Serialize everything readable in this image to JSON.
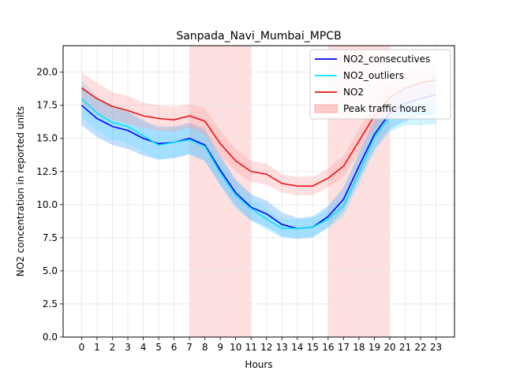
{
  "chart_data": {
    "type": "line",
    "title": "Sanpada_Navi_Mumbai_MPCB",
    "xlabel": "Hours",
    "ylabel": "NO2 concentration in reported units",
    "xlim": [
      -1.2,
      24.2
    ],
    "ylim": [
      0,
      22
    ],
    "x": [
      0,
      1,
      2,
      3,
      4,
      5,
      6,
      7,
      8,
      9,
      10,
      11,
      12,
      13,
      14,
      15,
      16,
      17,
      18,
      19,
      20,
      21,
      22,
      23
    ],
    "yticks": [
      0.0,
      2.5,
      5.0,
      7.5,
      10.0,
      12.5,
      15.0,
      17.5,
      20.0
    ],
    "ytick_labels": [
      "0.0",
      "2.5",
      "5.0",
      "7.5",
      "10.0",
      "12.5",
      "15.0",
      "17.5",
      "20.0"
    ],
    "xtick_labels": [
      "0",
      "1",
      "2",
      "3",
      "4",
      "5",
      "6",
      "7",
      "8",
      "9",
      "10",
      "11",
      "12",
      "13",
      "14",
      "15",
      "16",
      "17",
      "18",
      "19",
      "20",
      "21",
      "22",
      "23"
    ],
    "grid": true,
    "legend": "top-right",
    "peak_traffic_hours": [
      [
        7,
        11
      ],
      [
        16,
        20
      ]
    ],
    "series": [
      {
        "name": "NO2_consecutives",
        "color": "#0000ff",
        "band_color": "#3399ff",
        "values": [
          17.5,
          16.5,
          15.9,
          15.6,
          15.0,
          14.6,
          14.7,
          15.0,
          14.5,
          12.6,
          10.9,
          9.8,
          9.3,
          8.5,
          8.2,
          8.3,
          9.1,
          10.4,
          12.9,
          15.3,
          16.9,
          17.6,
          18.0,
          18.3
        ],
        "lower": [
          16.0,
          15.1,
          14.5,
          14.2,
          13.7,
          13.4,
          13.5,
          13.8,
          13.3,
          11.5,
          9.9,
          8.8,
          8.3,
          7.6,
          7.4,
          7.5,
          8.3,
          9.5,
          11.9,
          14.2,
          15.7,
          16.3,
          16.7,
          16.9
        ],
        "upper": [
          19.0,
          17.9,
          17.3,
          17.0,
          16.3,
          15.9,
          15.9,
          16.2,
          15.7,
          13.7,
          11.9,
          10.8,
          10.3,
          9.4,
          9.0,
          9.1,
          9.9,
          11.3,
          13.9,
          16.4,
          18.1,
          18.9,
          19.3,
          19.7
        ]
      },
      {
        "name": "NO2_outliers",
        "color": "#00e5ff",
        "band_color": "#66ddff",
        "values": [
          18.0,
          16.9,
          16.2,
          15.9,
          15.2,
          14.5,
          14.7,
          14.9,
          14.4,
          12.4,
          10.7,
          9.7,
          8.9,
          8.2,
          8.2,
          8.3,
          8.9,
          9.9,
          12.4,
          15.1,
          16.6,
          17.0,
          16.9,
          16.9
        ],
        "lower": [
          16.6,
          15.6,
          14.9,
          14.6,
          14.0,
          13.4,
          13.6,
          13.8,
          13.3,
          11.4,
          9.7,
          8.8,
          8.1,
          7.5,
          7.5,
          7.6,
          8.2,
          9.1,
          11.5,
          14.0,
          15.5,
          16.0,
          16.0,
          16.1
        ],
        "upper": [
          19.4,
          18.2,
          17.5,
          17.2,
          16.4,
          15.6,
          15.8,
          16.0,
          15.5,
          13.4,
          11.7,
          10.6,
          9.7,
          8.9,
          8.9,
          9.0,
          9.6,
          10.7,
          13.3,
          16.2,
          17.7,
          18.0,
          17.8,
          17.7
        ]
      },
      {
        "name": "NO2",
        "color": "#ee1111",
        "band_color": "#ff9999",
        "values": [
          18.8,
          18.0,
          17.4,
          17.1,
          16.7,
          16.5,
          16.4,
          16.7,
          16.3,
          14.6,
          13.3,
          12.5,
          12.3,
          11.6,
          11.4,
          11.4,
          12.0,
          12.9,
          14.8,
          16.7,
          18.1,
          18.8,
          19.2,
          19.4
        ],
        "lower": [
          17.6,
          16.9,
          16.4,
          16.1,
          15.8,
          15.6,
          15.5,
          15.8,
          15.3,
          13.7,
          12.5,
          11.7,
          11.5,
          10.9,
          10.7,
          10.7,
          11.3,
          12.1,
          13.9,
          15.7,
          17.0,
          17.6,
          18.0,
          18.2
        ],
        "upper": [
          20.0,
          19.2,
          18.5,
          18.2,
          17.7,
          17.5,
          17.4,
          17.6,
          17.3,
          15.6,
          14.2,
          13.3,
          13.1,
          12.3,
          12.1,
          12.1,
          12.7,
          13.7,
          15.7,
          17.7,
          19.2,
          20.0,
          20.4,
          20.7
        ]
      }
    ],
    "legend_entries": [
      {
        "label": "NO2_consecutives",
        "kind": "line",
        "color": "#0000ff"
      },
      {
        "label": "NO2_outliers",
        "kind": "line",
        "color": "#00e5ff"
      },
      {
        "label": "NO2",
        "kind": "line",
        "color": "#ee1111"
      },
      {
        "label": "Peak traffic hours",
        "kind": "patch",
        "color": "#ffcccc"
      }
    ]
  }
}
